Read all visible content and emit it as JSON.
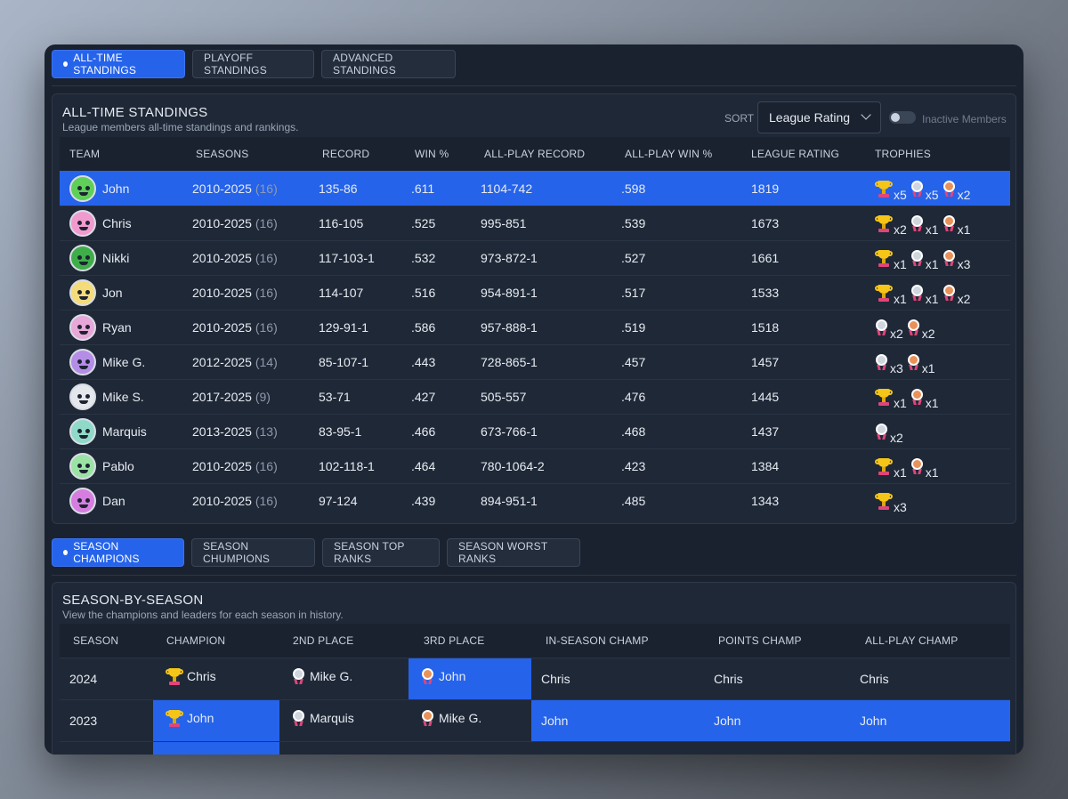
{
  "tabs": [
    {
      "label": "ALL-TIME STANDINGS",
      "active": true
    },
    {
      "label": "PLAYOFF STANDINGS",
      "active": false
    },
    {
      "label": "ADVANCED STANDINGS",
      "active": false
    }
  ],
  "standings": {
    "title": "ALL-TIME STANDINGS",
    "subtitle": "League members all-time standings and rankings.",
    "sort_label": "SORT",
    "sort_value": "League Rating",
    "toggle_label": "Inactive Members",
    "columns": [
      "TEAM",
      "SEASONS",
      "RECORD",
      "WIN %",
      "ALL-PLAY RECORD",
      "ALL-PLAY WIN %",
      "LEAGUE RATING",
      "TROPHIES"
    ],
    "rows": [
      {
        "team": "John",
        "seasons": "2010-2025",
        "count": "(16)",
        "record": "135-86",
        "win": ".611",
        "allplay": "1104-742",
        "allwin": ".598",
        "rating": "1819",
        "highlight": true,
        "avatar": "#5fcf5a",
        "trophies": [
          {
            "k": "gold",
            "n": "x5"
          },
          {
            "k": "silver",
            "n": "x5"
          },
          {
            "k": "bronze",
            "n": "x2"
          }
        ]
      },
      {
        "team": "Chris",
        "seasons": "2010-2025",
        "count": "(16)",
        "record": "116-105",
        "win": ".525",
        "allplay": "995-851",
        "allwin": ".539",
        "rating": "1673",
        "avatar": "#f19ad0",
        "trophies": [
          {
            "k": "gold",
            "n": "x2"
          },
          {
            "k": "silver",
            "n": "x1"
          },
          {
            "k": "bronze",
            "n": "x1"
          }
        ]
      },
      {
        "team": "Nikki",
        "seasons": "2010-2025",
        "count": "(16)",
        "record": "117-103-1",
        "win": ".532",
        "allplay": "973-872-1",
        "allwin": ".527",
        "rating": "1661",
        "avatar": "#3fae4a",
        "trophies": [
          {
            "k": "gold",
            "n": "x1"
          },
          {
            "k": "silver",
            "n": "x1"
          },
          {
            "k": "bronze",
            "n": "x3"
          }
        ]
      },
      {
        "team": "Jon",
        "seasons": "2010-2025",
        "count": "(16)",
        "record": "114-107",
        "win": ".516",
        "allplay": "954-891-1",
        "allwin": ".517",
        "rating": "1533",
        "avatar": "#f4dc7a",
        "trophies": [
          {
            "k": "gold",
            "n": "x1"
          },
          {
            "k": "silver",
            "n": "x1"
          },
          {
            "k": "bronze",
            "n": "x2"
          }
        ]
      },
      {
        "team": "Ryan",
        "seasons": "2010-2025",
        "count": "(16)",
        "record": "129-91-1",
        "win": ".586",
        "allplay": "957-888-1",
        "allwin": ".519",
        "rating": "1518",
        "avatar": "#e7a7d8",
        "trophies": [
          {
            "k": "silver",
            "n": "x2"
          },
          {
            "k": "bronze",
            "n": "x2"
          }
        ]
      },
      {
        "team": "Mike G.",
        "seasons": "2012-2025",
        "count": "(14)",
        "record": "85-107-1",
        "win": ".443",
        "allplay": "728-865-1",
        "allwin": ".457",
        "rating": "1457",
        "avatar": "#b48de6",
        "trophies": [
          {
            "k": "silver",
            "n": "x3"
          },
          {
            "k": "bronze",
            "n": "x1"
          }
        ]
      },
      {
        "team": "Mike S.",
        "seasons": "2017-2025",
        "count": "(9)",
        "record": "53-71",
        "win": ".427",
        "allplay": "505-557",
        "allwin": ".476",
        "rating": "1445",
        "avatar": "#e4e7ec",
        "trophies": [
          {
            "k": "gold",
            "n": "x1"
          },
          {
            "k": "bronze",
            "n": "x1"
          }
        ]
      },
      {
        "team": "Marquis",
        "seasons": "2013-2025",
        "count": "(13)",
        "record": "83-95-1",
        "win": ".466",
        "allplay": "673-766-1",
        "allwin": ".468",
        "rating": "1437",
        "avatar": "#8fd9c9",
        "trophies": [
          {
            "k": "silver",
            "n": "x2"
          }
        ]
      },
      {
        "team": "Pablo",
        "seasons": "2010-2025",
        "count": "(16)",
        "record": "102-118-1",
        "win": ".464",
        "allplay": "780-1064-2",
        "allwin": ".423",
        "rating": "1384",
        "avatar": "#9be3a5",
        "trophies": [
          {
            "k": "gold",
            "n": "x1"
          },
          {
            "k": "bronze",
            "n": "x1"
          }
        ]
      },
      {
        "team": "Dan",
        "seasons": "2010-2025",
        "count": "(16)",
        "record": "97-124",
        "win": ".439",
        "allplay": "894-951-1",
        "allwin": ".485",
        "rating": "1343",
        "avatar": "#d77de0",
        "trophies": [
          {
            "k": "gold",
            "n": "x3"
          }
        ]
      }
    ]
  },
  "tabs2": [
    {
      "label": "SEASON CHAMPIONS",
      "active": true
    },
    {
      "label": "SEASON CHUMPIONS",
      "active": false
    },
    {
      "label": "SEASON TOP RANKS",
      "active": false
    },
    {
      "label": "SEASON WORST RANKS",
      "active": false
    }
  ],
  "seasons": {
    "title": "SEASON-BY-SEASON",
    "subtitle": "View the champions and leaders for each season in history.",
    "columns": [
      "SEASON",
      "CHAMPION",
      "2ND PLACE",
      "3RD PLACE",
      "IN-SEASON CHAMP",
      "POINTS CHAMP",
      "ALL-PLAY CHAMP"
    ],
    "rows": [
      {
        "season": "2024",
        "champion": "Chris",
        "second": "Mike G.",
        "third": "John",
        "inseason": "Chris",
        "points": "Chris",
        "allplay": "Chris",
        "hl": [
          3
        ]
      },
      {
        "season": "2023",
        "champion": "John",
        "second": "Marquis",
        "third": "Mike G.",
        "inseason": "John",
        "points": "John",
        "allplay": "John",
        "hl": [
          1,
          4,
          5,
          6
        ]
      },
      {
        "season": "",
        "champion": "",
        "second": "",
        "third": "",
        "inseason": "",
        "points": "",
        "allplay": "",
        "hl": [
          1
        ]
      }
    ]
  },
  "colors": {
    "accent": "#2563eb",
    "gold": "#f5c518",
    "silver": "#cfd6df",
    "bronze": "#e8925a"
  }
}
